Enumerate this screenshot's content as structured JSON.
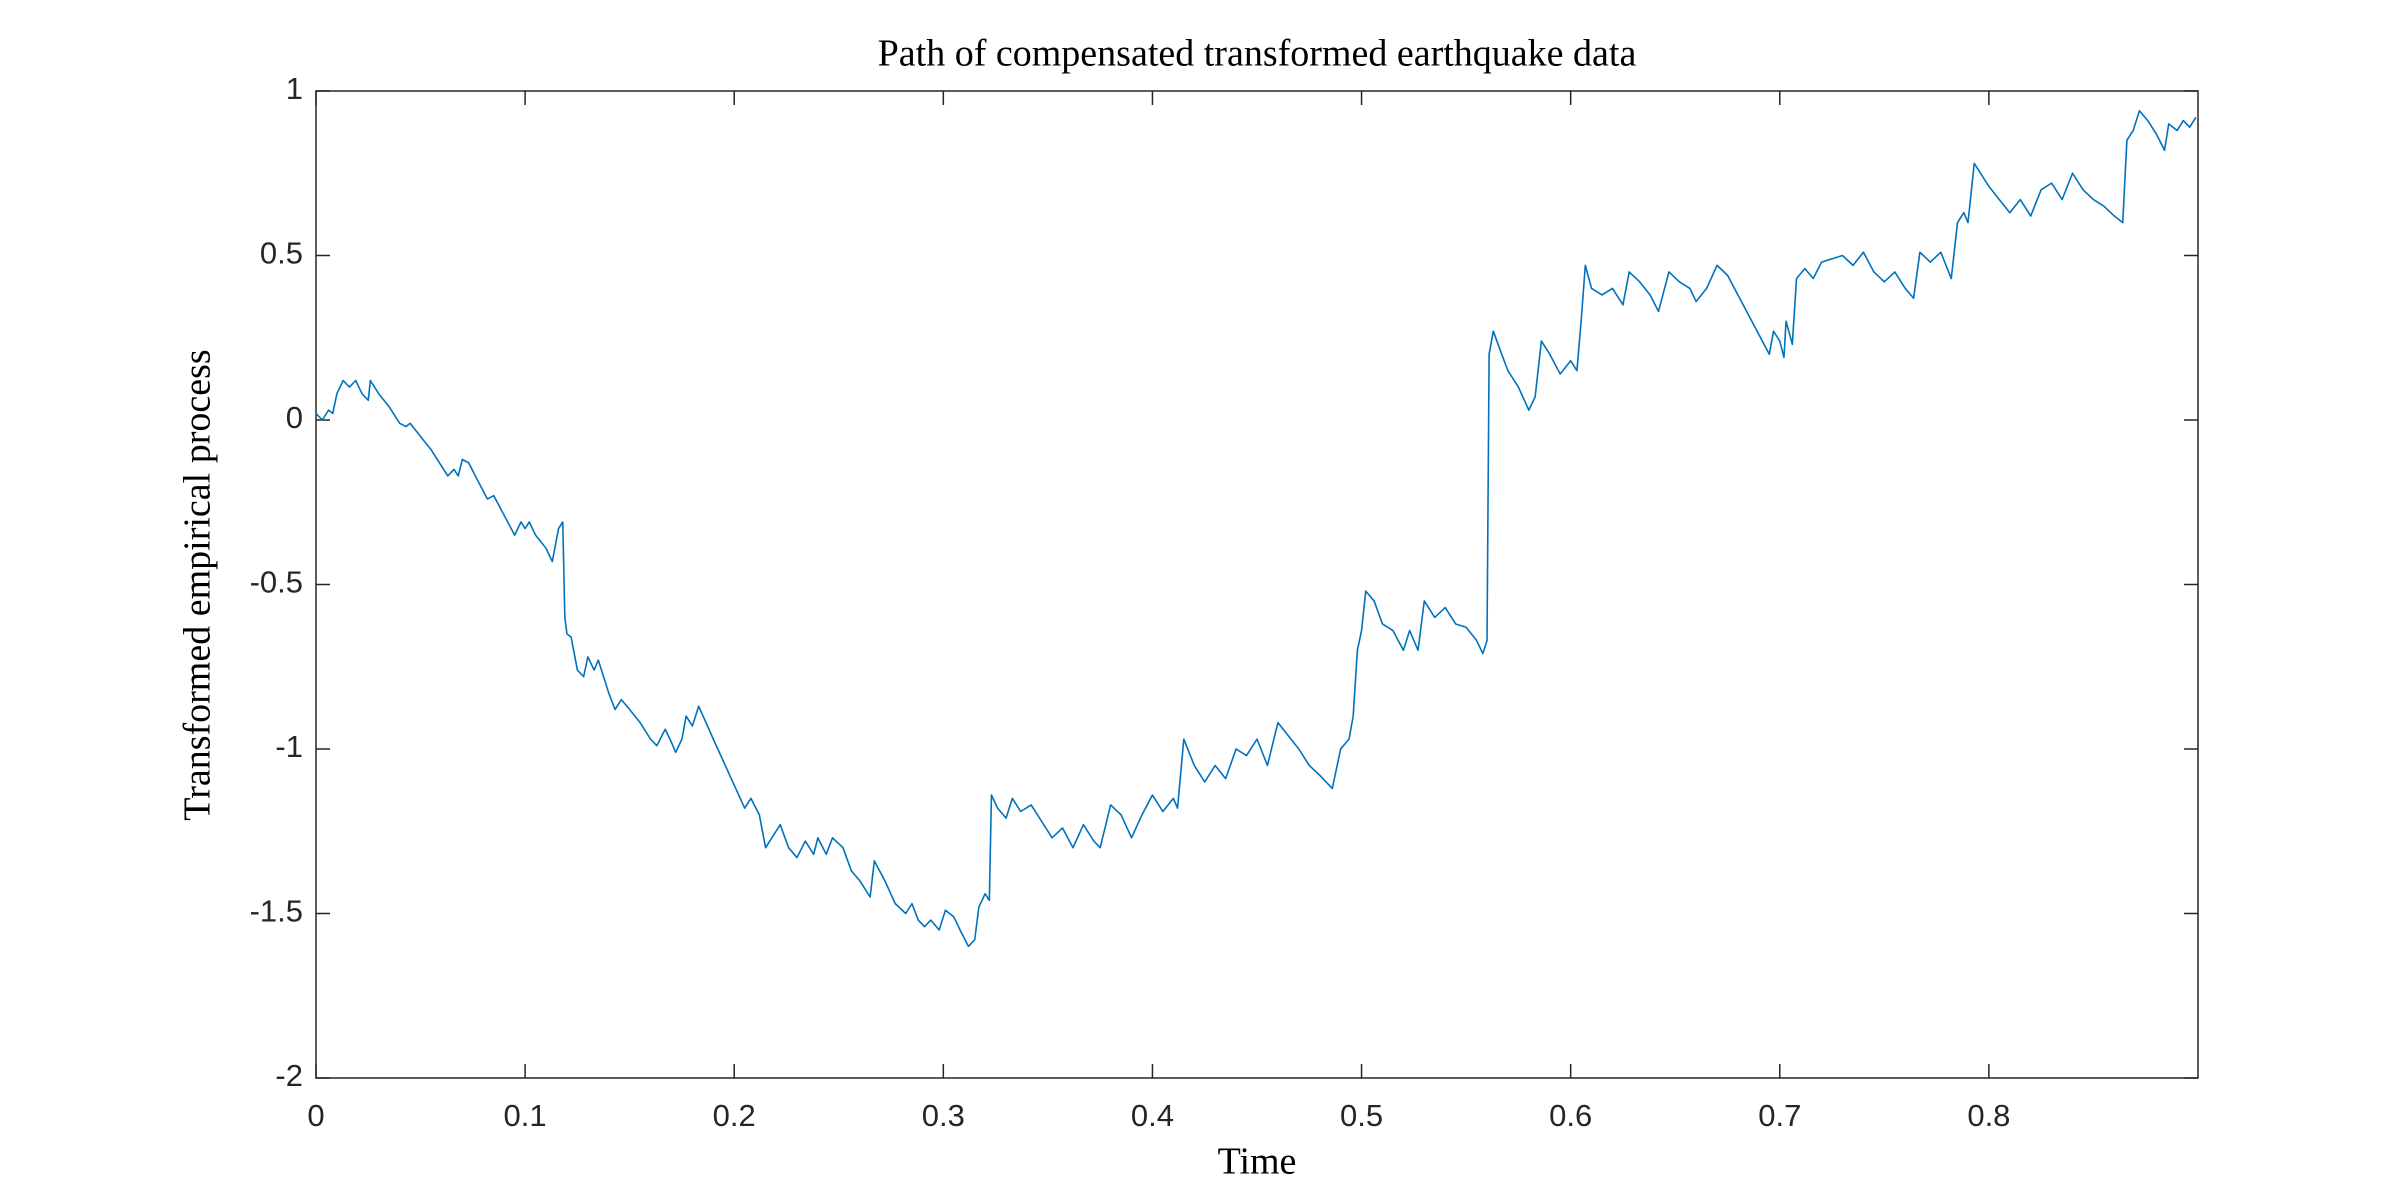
{
  "chart_data": {
    "type": "line",
    "title": "Path of compensated transformed earthquake data",
    "xlabel": "Time",
    "ylabel": "Transformed empirical process",
    "color": "#0072bd",
    "xlim": [
      0,
      0.9
    ],
    "xticks": [
      0,
      0.1,
      0.2,
      0.3,
      0.4,
      0.5,
      0.6,
      0.7,
      0.8
    ],
    "ylim": [
      -2,
      1
    ],
    "yticks": [
      -2,
      -1.5,
      -1,
      -0.5,
      0,
      0.5,
      1
    ],
    "x": [
      0,
      0.003,
      0.006,
      0.008,
      0.01,
      0.013,
      0.016,
      0.019,
      0.022,
      0.025,
      0.026,
      0.03,
      0.035,
      0.04,
      0.043,
      0.045,
      0.05,
      0.055,
      0.06,
      0.063,
      0.066,
      0.068,
      0.07,
      0.073,
      0.077,
      0.082,
      0.085,
      0.09,
      0.095,
      0.098,
      0.1,
      0.102,
      0.105,
      0.11,
      0.113,
      0.116,
      0.118,
      0.119,
      0.12,
      0.122,
      0.125,
      0.128,
      0.13,
      0.133,
      0.135,
      0.14,
      0.143,
      0.146,
      0.15,
      0.155,
      0.16,
      0.163,
      0.167,
      0.17,
      0.172,
      0.175,
      0.177,
      0.18,
      0.183,
      0.19,
      0.2,
      0.205,
      0.208,
      0.212,
      0.215,
      0.218,
      0.222,
      0.226,
      0.23,
      0.234,
      0.238,
      0.24,
      0.244,
      0.247,
      0.252,
      0.256,
      0.26,
      0.265,
      0.267,
      0.272,
      0.277,
      0.282,
      0.285,
      0.288,
      0.291,
      0.294,
      0.298,
      0.301,
      0.305,
      0.308,
      0.312,
      0.315,
      0.317,
      0.32,
      0.322,
      0.323,
      0.326,
      0.33,
      0.333,
      0.337,
      0.342,
      0.347,
      0.352,
      0.357,
      0.362,
      0.367,
      0.372,
      0.375,
      0.38,
      0.385,
      0.39,
      0.395,
      0.4,
      0.405,
      0.41,
      0.412,
      0.415,
      0.42,
      0.425,
      0.43,
      0.435,
      0.44,
      0.445,
      0.45,
      0.455,
      0.46,
      0.465,
      0.47,
      0.475,
      0.48,
      0.486,
      0.49,
      0.494,
      0.496,
      0.498,
      0.5,
      0.502,
      0.506,
      0.51,
      0.515,
      0.52,
      0.523,
      0.527,
      0.53,
      0.535,
      0.54,
      0.545,
      0.55,
      0.555,
      0.558,
      0.56,
      0.561,
      0.563,
      0.567,
      0.57,
      0.575,
      0.58,
      0.583,
      0.586,
      0.59,
      0.595,
      0.6,
      0.603,
      0.605,
      0.607,
      0.61,
      0.615,
      0.62,
      0.625,
      0.628,
      0.633,
      0.638,
      0.642,
      0.647,
      0.652,
      0.657,
      0.66,
      0.665,
      0.67,
      0.675,
      0.68,
      0.695,
      0.697,
      0.7,
      0.702,
      0.703,
      0.706,
      0.708,
      0.712,
      0.716,
      0.72,
      0.73,
      0.735,
      0.74,
      0.745,
      0.75,
      0.755,
      0.76,
      0.764,
      0.767,
      0.772,
      0.777,
      0.782,
      0.785,
      0.788,
      0.79,
      0.793,
      0.8,
      0.805,
      0.81,
      0.815,
      0.82,
      0.825,
      0.83,
      0.835,
      0.84,
      0.845,
      0.85,
      0.855,
      0.86,
      0.864,
      0.866,
      0.869,
      0.872,
      0.876,
      0.88,
      0.884,
      0.886,
      0.89,
      0.893,
      0.896,
      0.899
    ],
    "values": [
      0.02,
      0,
      0.03,
      0.02,
      0.08,
      0.12,
      0.1,
      0.12,
      0.08,
      0.06,
      0.12,
      0.08,
      0.04,
      -0.01,
      -0.02,
      -0.01,
      -0.05,
      -0.09,
      -0.14,
      -0.17,
      -0.15,
      -0.17,
      -0.12,
      -0.13,
      -0.18,
      -0.24,
      -0.23,
      -0.29,
      -0.35,
      -0.31,
      -0.33,
      -0.31,
      -0.35,
      -0.39,
      -0.43,
      -0.33,
      -0.31,
      -0.6,
      -0.65,
      -0.66,
      -0.76,
      -0.78,
      -0.72,
      -0.76,
      -0.73,
      -0.83,
      -0.88,
      -0.85,
      -0.88,
      -0.92,
      -0.97,
      -0.99,
      -0.94,
      -0.98,
      -1.01,
      -0.97,
      -0.9,
      -0.93,
      -0.87,
      -0.97,
      -1.11,
      -1.18,
      -1.15,
      -1.2,
      -1.3,
      -1.27,
      -1.23,
      -1.3,
      -1.33,
      -1.28,
      -1.32,
      -1.27,
      -1.32,
      -1.27,
      -1.3,
      -1.37,
      -1.4,
      -1.45,
      -1.34,
      -1.4,
      -1.47,
      -1.5,
      -1.47,
      -1.52,
      -1.54,
      -1.52,
      -1.55,
      -1.49,
      -1.51,
      -1.55,
      -1.6,
      -1.58,
      -1.48,
      -1.44,
      -1.46,
      -1.14,
      -1.18,
      -1.21,
      -1.15,
      -1.19,
      -1.17,
      -1.22,
      -1.27,
      -1.24,
      -1.3,
      -1.23,
      -1.28,
      -1.3,
      -1.17,
      -1.2,
      -1.27,
      -1.2,
      -1.14,
      -1.19,
      -1.15,
      -1.18,
      -0.97,
      -1.05,
      -1.1,
      -1.05,
      -1.09,
      -1,
      -1.02,
      -0.97,
      -1.05,
      -0.92,
      -0.96,
      -1,
      -1.05,
      -1.08,
      -1.12,
      -1,
      -0.97,
      -0.9,
      -0.7,
      -0.64,
      -0.52,
      -0.55,
      -0.62,
      -0.64,
      -0.7,
      -0.64,
      -0.7,
      -0.55,
      -0.6,
      -0.57,
      -0.62,
      -0.63,
      -0.67,
      -0.71,
      -0.67,
      0.2,
      0.27,
      0.2,
      0.15,
      0.1,
      0.03,
      0.07,
      0.24,
      0.2,
      0.14,
      0.18,
      0.15,
      0.3,
      0.47,
      0.4,
      0.38,
      0.4,
      0.35,
      0.45,
      0.42,
      0.38,
      0.33,
      0.45,
      0.42,
      0.4,
      0.36,
      0.4,
      0.47,
      0.44,
      0.38,
      0.2,
      0.27,
      0.24,
      0.19,
      0.3,
      0.23,
      0.43,
      0.46,
      0.43,
      0.48,
      0.5,
      0.47,
      0.51,
      0.45,
      0.42,
      0.45,
      0.4,
      0.37,
      0.51,
      0.48,
      0.51,
      0.43,
      0.6,
      0.63,
      0.6,
      0.78,
      0.71,
      0.67,
      0.63,
      0.67,
      0.62,
      0.7,
      0.72,
      0.67,
      0.75,
      0.7,
      0.67,
      0.65,
      0.62,
      0.6,
      0.85,
      0.88,
      0.94,
      0.91,
      0.87,
      0.82,
      0.9,
      0.88,
      0.91,
      0.89,
      0.92
    ]
  }
}
